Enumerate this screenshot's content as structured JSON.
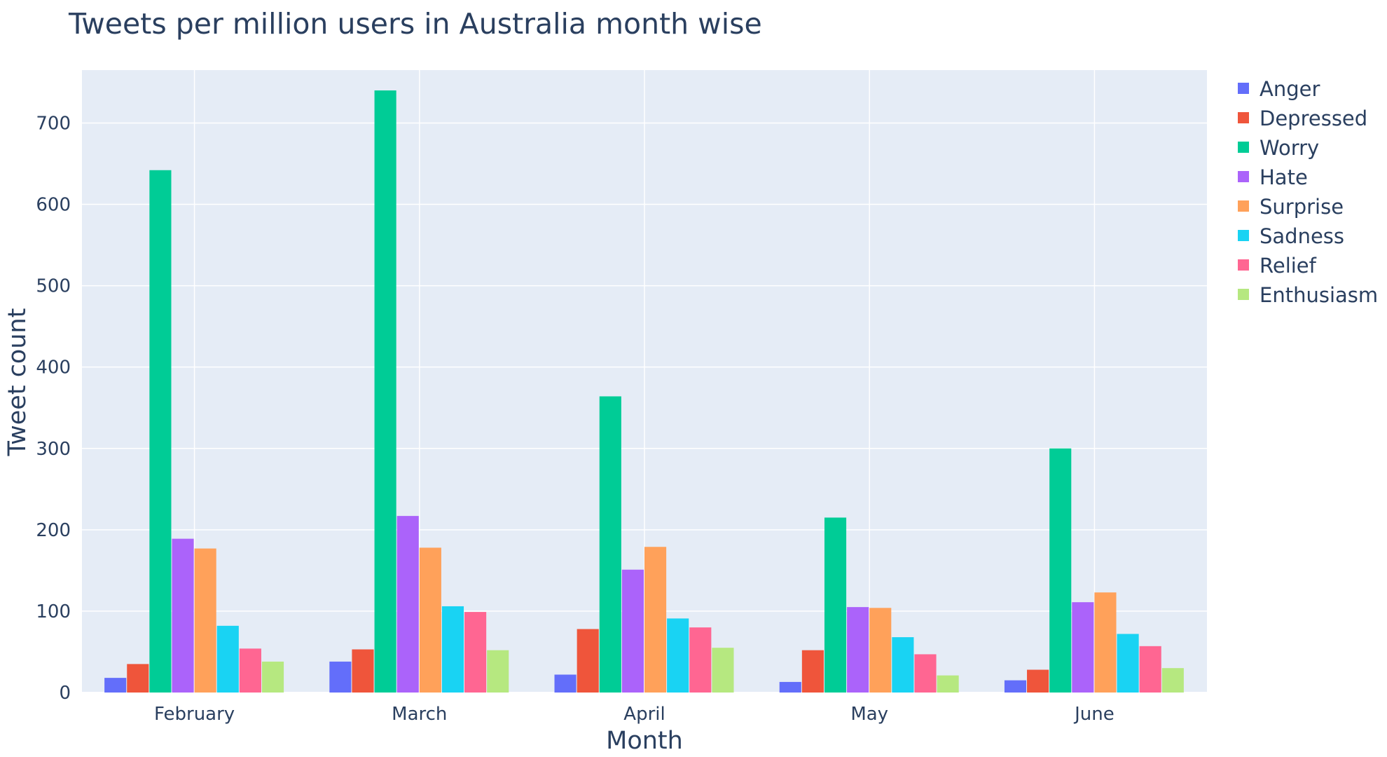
{
  "chart_data": {
    "type": "bar",
    "title": "Tweets per million users in Australia month wise",
    "xlabel": "Month",
    "ylabel": "Tweet count",
    "categories": [
      "February",
      "March",
      "April",
      "May",
      "June"
    ],
    "ylim": [
      0,
      765
    ],
    "yticks": [
      0,
      100,
      200,
      300,
      400,
      500,
      600,
      700
    ],
    "grid": true,
    "legend_position": "right",
    "plot_background": "#e5ecf6",
    "series": [
      {
        "name": "Anger",
        "color": "#636efa",
        "values": [
          18,
          38,
          22,
          13,
          15
        ]
      },
      {
        "name": "Depressed",
        "color": "#ef553b",
        "values": [
          35,
          53,
          78,
          52,
          28
        ]
      },
      {
        "name": "Worry",
        "color": "#00cc96",
        "values": [
          642,
          740,
          364,
          215,
          300
        ]
      },
      {
        "name": "Hate",
        "color": "#ab63fa",
        "values": [
          189,
          217,
          151,
          105,
          111
        ]
      },
      {
        "name": "Surprise",
        "color": "#ffa15a",
        "values": [
          177,
          178,
          179,
          104,
          123
        ]
      },
      {
        "name": "Sadness",
        "color": "#19d3f3",
        "values": [
          82,
          106,
          91,
          68,
          72
        ]
      },
      {
        "name": "Relief",
        "color": "#ff6692",
        "values": [
          54,
          99,
          80,
          47,
          57
        ]
      },
      {
        "name": "Enthusiasm",
        "color": "#b6e880",
        "values": [
          38,
          52,
          55,
          21,
          30
        ]
      }
    ]
  }
}
